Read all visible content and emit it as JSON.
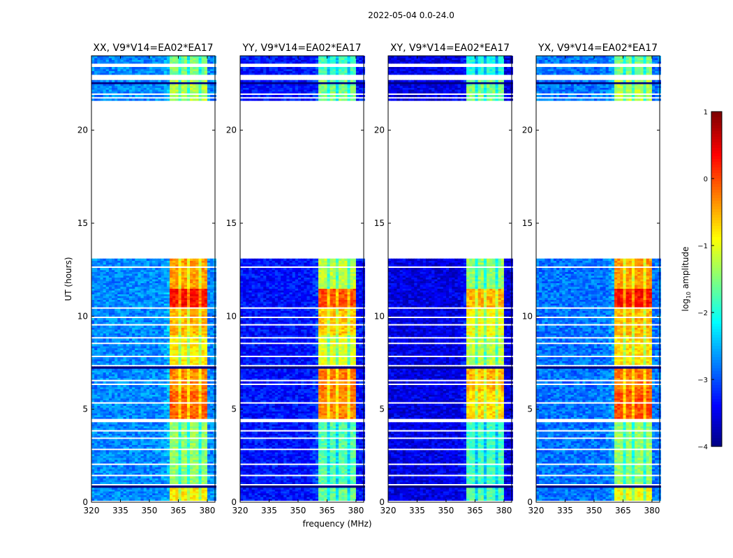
{
  "chart_data": {
    "type": "heatmap",
    "suptitle": "2022-05-04 0.0-24.0",
    "xlabel": "frequency (MHz)",
    "ylabel": "UT (hours)",
    "xlim": [
      320,
      384
    ],
    "ylim": [
      0,
      24
    ],
    "xticks": [
      "320",
      "335",
      "350",
      "365",
      "380"
    ],
    "xtick_values": [
      320,
      335,
      350,
      365,
      380
    ],
    "yticks": [
      "0",
      "5",
      "10",
      "15",
      "20"
    ],
    "ytick_values": [
      0,
      5,
      10,
      15,
      20
    ],
    "colorbar": {
      "label": "log10 amplitude",
      "label_main": "log",
      "label_sub": "10",
      "label_rest": " amplitude",
      "range": [
        -4,
        1
      ],
      "ticks": [
        "1",
        "0",
        "−1",
        "−2",
        "−3",
        "−4"
      ],
      "tick_values": [
        1,
        0,
        -1,
        -2,
        -3,
        -4
      ],
      "colormap": "jet"
    },
    "flagged_hours": [
      [
        0.05,
        0.15
      ],
      [
        0.9,
        1.0
      ],
      [
        1.45,
        1.5
      ],
      [
        2.05,
        2.1
      ],
      [
        2.85,
        2.9
      ],
      [
        3.45,
        3.5
      ],
      [
        3.6,
        3.65
      ],
      [
        3.7,
        3.75
      ],
      [
        3.85,
        3.9
      ],
      [
        4.3,
        4.5
      ],
      [
        4.98,
        5.02
      ],
      [
        5.3,
        5.35
      ],
      [
        6.3,
        6.35
      ],
      [
        6.5,
        6.55
      ],
      [
        7.3,
        7.35
      ],
      [
        7.8,
        7.85
      ],
      [
        8.5,
        8.55
      ],
      [
        8.8,
        8.85
      ],
      [
        9.5,
        9.55
      ],
      [
        9.9,
        9.95
      ],
      [
        10.4,
        10.45
      ],
      [
        11.55,
        11.6
      ],
      [
        12.6,
        12.65
      ],
      [
        13.05,
        21.6
      ],
      [
        21.75,
        21.8
      ],
      [
        21.95,
        22.0
      ],
      [
        22.2,
        22.25
      ],
      [
        22.7,
        23.0
      ],
      [
        23.45,
        23.6
      ]
    ],
    "dark_hours": [
      [
        0,
        0.05
      ],
      [
        0.85,
        0.9
      ],
      [
        1.3,
        1.33
      ],
      [
        3.0,
        3.03
      ],
      [
        4.1,
        4.13
      ],
      [
        5.1,
        5.13
      ],
      [
        7.2,
        7.25
      ],
      [
        8.1,
        8.13
      ],
      [
        9.7,
        9.73
      ],
      [
        10.95,
        11.0
      ],
      [
        22.5,
        22.6
      ]
    ],
    "band": {
      "start_mhz": 361,
      "end_mhz": 380,
      "gaps_mhz": [
        365.8,
        370.8,
        375.8
      ]
    },
    "panels": [
      {
        "title": "XX, V9*V14=EA02*EA17",
        "background": -2.7,
        "segments": [
          [
            0,
            0.9,
            -0.8
          ],
          [
            1,
            4.3,
            -1.4
          ],
          [
            4.5,
            6,
            -0.1
          ],
          [
            6,
            7.3,
            -0.3
          ],
          [
            7.3,
            9,
            -0.8
          ],
          [
            9,
            10.5,
            -0.5
          ],
          [
            10.5,
            11.5,
            0.3
          ],
          [
            11.5,
            13.05,
            -0.4
          ],
          [
            21.6,
            22.7,
            -1.2
          ],
          [
            23,
            24,
            -1.5
          ]
        ]
      },
      {
        "title": "YY, V9*V14=EA02*EA17",
        "background": -3.3,
        "segments": [
          [
            0,
            0.9,
            -1.6
          ],
          [
            1,
            4.3,
            -1.7
          ],
          [
            4.5,
            6,
            -0.3
          ],
          [
            6,
            7.3,
            -0.2
          ],
          [
            7.3,
            9,
            -1.0
          ],
          [
            9,
            10.5,
            -0.6
          ],
          [
            10.5,
            11.5,
            0.0
          ],
          [
            11.5,
            13.05,
            -1.2
          ],
          [
            21.6,
            22.7,
            -1.5
          ],
          [
            23,
            24,
            -1.8
          ]
        ]
      },
      {
        "title": "XY, V9*V14=EA02*EA17",
        "background": -3.5,
        "segments": [
          [
            0,
            0.9,
            -1.7
          ],
          [
            1,
            4.3,
            -1.8
          ],
          [
            4.5,
            6,
            -0.7
          ],
          [
            6,
            7.3,
            -0.5
          ],
          [
            7.3,
            9,
            -1.2
          ],
          [
            9,
            10.5,
            -0.9
          ],
          [
            10.5,
            11.5,
            -0.5
          ],
          [
            11.5,
            13.05,
            -1.4
          ],
          [
            21.6,
            22.7,
            -1.5
          ],
          [
            23,
            24,
            -2.0
          ]
        ]
      },
      {
        "title": "YX, V9*V14=EA02*EA17",
        "background": -2.8,
        "segments": [
          [
            0,
            0.9,
            -0.9
          ],
          [
            1,
            4.3,
            -1.4
          ],
          [
            4.5,
            6,
            0.0
          ],
          [
            6,
            7.3,
            -0.2
          ],
          [
            7.3,
            9,
            -0.7
          ],
          [
            9,
            10.5,
            -0.5
          ],
          [
            10.5,
            11.5,
            0.3
          ],
          [
            11.5,
            13.05,
            -0.4
          ],
          [
            21.6,
            22.7,
            -1.2
          ],
          [
            23,
            24,
            -1.5
          ]
        ]
      }
    ]
  }
}
